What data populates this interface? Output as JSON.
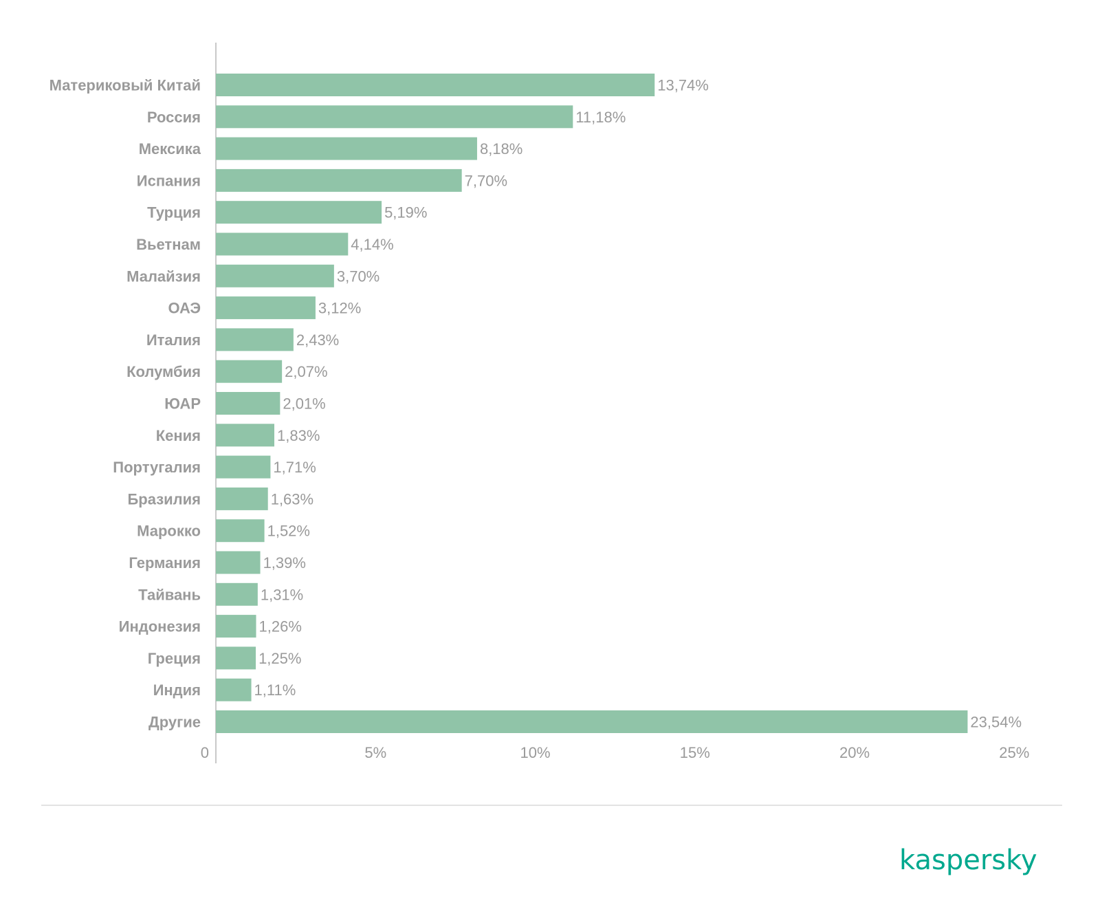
{
  "chart_data": {
    "type": "bar",
    "orientation": "horizontal",
    "categories": [
      "Материковый Китай",
      "Россия",
      "Мексика",
      "Испания",
      "Турция",
      "Вьетнам",
      "Малайзия",
      "ОАЭ",
      "Италия",
      "Колумбия",
      "ЮАР",
      "Кения",
      "Португалия",
      "Бразилия",
      "Марокко",
      "Германия",
      "Тайвань",
      "Индонезия",
      "Греция",
      "Индия",
      "Другие"
    ],
    "values": [
      13.74,
      11.18,
      8.18,
      7.7,
      5.19,
      4.14,
      3.7,
      3.12,
      2.43,
      2.07,
      2.01,
      1.83,
      1.71,
      1.63,
      1.52,
      1.39,
      1.31,
      1.26,
      1.25,
      1.11,
      23.54
    ],
    "value_labels": [
      "13,74%",
      "11,18%",
      "8,18%",
      "7,70%",
      "5,19%",
      "4,14%",
      "3,70%",
      "3,12%",
      "2,43%",
      "2,07%",
      "2,01%",
      "1,83%",
      "1,71%",
      "1,63%",
      "1,52%",
      "1,39%",
      "1,31%",
      "1,26%",
      "1,25%",
      "1,11%",
      "23,54%"
    ],
    "xlim": [
      0,
      25
    ],
    "ticks": [
      0,
      5,
      10,
      15,
      20,
      25
    ],
    "tick_labels": [
      "0",
      "5%",
      "10%",
      "15%",
      "20%",
      "25%"
    ],
    "bar_color": "#90c4a8",
    "grid": false,
    "legend": "none"
  },
  "brand": {
    "logo_text": "kaspersky",
    "color": "#00a88e"
  }
}
